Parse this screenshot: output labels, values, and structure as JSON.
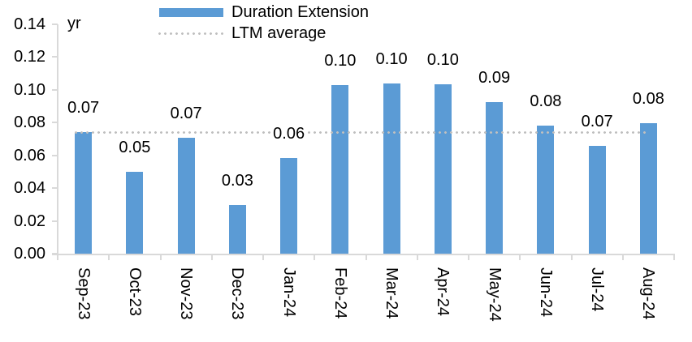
{
  "chart_data": {
    "type": "bar",
    "categories": [
      "Sep-23",
      "Oct-23",
      "Nov-23",
      "Dec-23",
      "Jan-24",
      "Feb-24",
      "Mar-24",
      "Apr-24",
      "May-24",
      "Jun-24",
      "Jul-24",
      "Aug-24"
    ],
    "series": [
      {
        "name": "Duration Extension",
        "color": "#5B9BD5",
        "values": [
          0.07,
          0.05,
          0.07,
          0.03,
          0.06,
          0.1,
          0.1,
          0.1,
          0.09,
          0.08,
          0.07,
          0.08
        ],
        "precise_values": [
          0.0742,
          0.05,
          0.0707,
          0.0297,
          0.0584,
          0.1029,
          0.1039,
          0.1034,
          0.0925,
          0.0782,
          0.0658,
          0.0797
        ]
      }
    ],
    "data_labels": [
      "0.07",
      "0.05",
      "0.07",
      "0.03",
      "0.06",
      "0.10",
      "0.10",
      "0.10",
      "0.09",
      "0.08",
      "0.07",
      "0.08"
    ],
    "reference_line": {
      "name": "LTM average",
      "value": 0.074,
      "style": "dotted",
      "color": "#BFBFBF"
    },
    "legend": [
      {
        "label": "Duration Extension",
        "swatch": "bar",
        "color": "#5B9BD5"
      },
      {
        "label": "LTM average",
        "swatch": "dotted-line",
        "color": "#BFBFBF"
      }
    ],
    "legend_position": "top-center",
    "ylabel": "yr",
    "xlabel": "",
    "ylim": [
      0,
      0.14
    ],
    "ytick_step": 0.02,
    "ytick_labels": [
      "0.00",
      "0.02",
      "0.04",
      "0.06",
      "0.08",
      "0.10",
      "0.12",
      "0.14"
    ],
    "grid": false,
    "axis_color": "#D9D9D9",
    "text_color": "#000000",
    "background": "#FFFFFF"
  }
}
